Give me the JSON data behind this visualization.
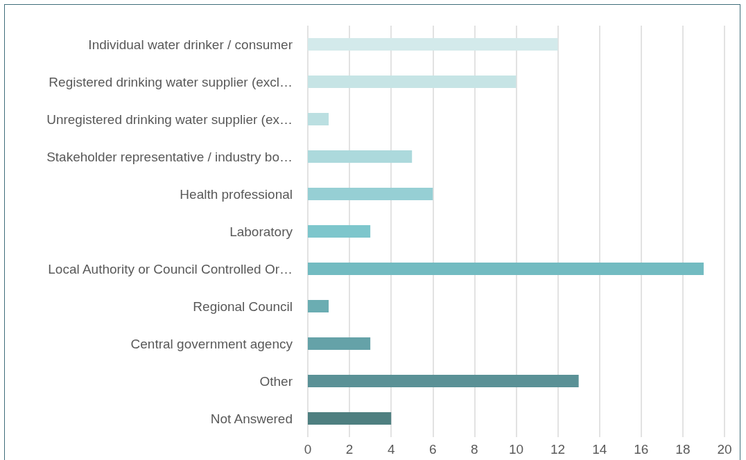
{
  "chart_data": {
    "type": "bar",
    "orientation": "horizontal",
    "categories": [
      "Individual water drinker / consumer",
      "Registered drinking water supplier (excl…",
      "Unregistered drinking water supplier (ex…",
      "Stakeholder representative / industry bo…",
      "Health professional",
      "Laboratory",
      "Local Authority or Council Controlled Or…",
      "Regional Council",
      "Central government agency",
      "Other",
      "Not Answered"
    ],
    "values": [
      12,
      10,
      1,
      5,
      6,
      3,
      19,
      1,
      3,
      13,
      4
    ],
    "colors": [
      "#d3eaeb",
      "#c6e4e5",
      "#bbdfe1",
      "#acd9dc",
      "#96cfd4",
      "#7dc6cc",
      "#72bbc1",
      "#6badb2",
      "#65a2a8",
      "#5a9196",
      "#4e7f80"
    ],
    "xlim": [
      0,
      20
    ],
    "xticks": [
      0,
      2,
      4,
      6,
      8,
      10,
      12,
      14,
      16,
      18,
      20
    ],
    "grid": "x"
  }
}
